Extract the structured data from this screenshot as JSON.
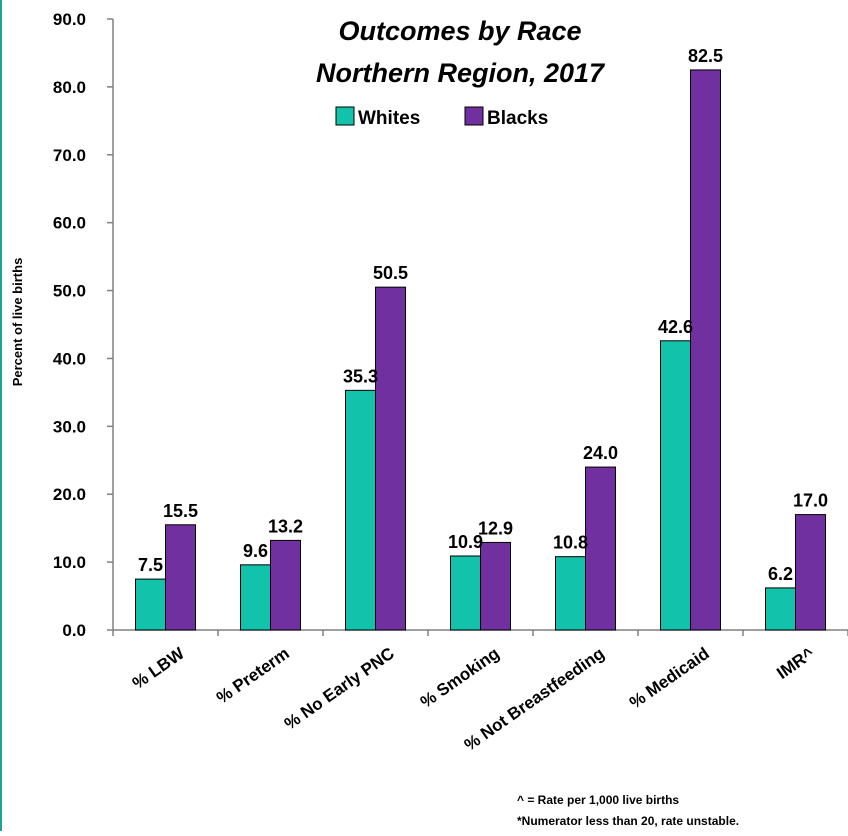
{
  "chart_data": {
    "type": "bar",
    "title_lines": [
      "Outcomes by Race",
      "Northern Region, 2017"
    ],
    "ylabel": "Percent of live births",
    "xlabel": "",
    "ylim": [
      0,
      90
    ],
    "yticks": [
      "0.0",
      "10.0",
      "20.0",
      "30.0",
      "40.0",
      "50.0",
      "60.0",
      "70.0",
      "80.0",
      "90.0"
    ],
    "categories": [
      "% LBW",
      "% Preterm",
      "% No Early PNC",
      "% Smoking",
      "% Not Breastfeeding",
      "% Medicaid",
      "IMR^"
    ],
    "series": [
      {
        "name": "Whites",
        "color": "#13c2aa",
        "values": [
          7.5,
          9.6,
          35.3,
          10.9,
          10.8,
          42.6,
          6.2
        ],
        "labels": [
          "7.5",
          "9.6",
          "35.3",
          "10.9",
          "10.8",
          "42.6",
          "6.2"
        ]
      },
      {
        "name": "Blacks",
        "color": "#7030a0",
        "values": [
          15.5,
          13.2,
          50.5,
          12.9,
          24.0,
          82.5,
          17.0
        ],
        "labels": [
          "15.5",
          "13.2",
          "50.5",
          "12.9",
          "24.0",
          "82.5",
          "17.0"
        ]
      }
    ],
    "legend_position": "top-center",
    "grid": false,
    "notes": [
      "^ = Rate per 1,000 live births",
      "*Numerator less than 20, rate unstable."
    ]
  }
}
